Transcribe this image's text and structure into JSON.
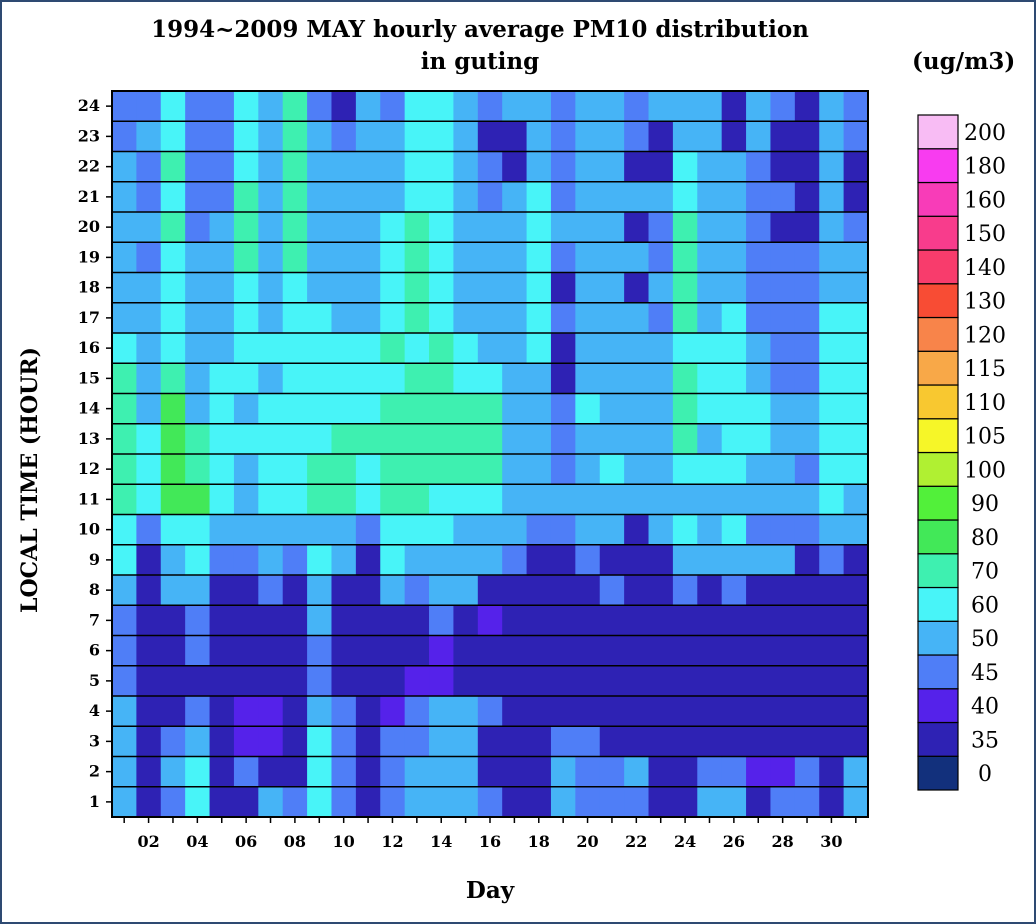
{
  "chart_data": {
    "type": "heatmap",
    "title": "1994~2009 MAY hourly average PM10 distribution",
    "subtitle": "in guting",
    "xlabel": "Day",
    "ylabel": "LOCAL TIME (HOUR)",
    "colorbar_unit": "(ug/m3)",
    "x": [
      1,
      2,
      3,
      4,
      5,
      6,
      7,
      8,
      9,
      10,
      11,
      12,
      13,
      14,
      15,
      16,
      17,
      18,
      19,
      20,
      21,
      22,
      23,
      24,
      25,
      26,
      27,
      28,
      29,
      30,
      31
    ],
    "x_tick_labels": [
      "02",
      "04",
      "06",
      "08",
      "10",
      "12",
      "14",
      "16",
      "18",
      "20",
      "22",
      "24",
      "26",
      "28",
      "30"
    ],
    "y": [
      1,
      2,
      3,
      4,
      5,
      6,
      7,
      8,
      9,
      10,
      11,
      12,
      13,
      14,
      15,
      16,
      17,
      18,
      19,
      20,
      21,
      22,
      23,
      24
    ],
    "y_tick_labels": [
      "1",
      "2",
      "3",
      "4",
      "5",
      "6",
      "7",
      "8",
      "9",
      "10",
      "11",
      "12",
      "13",
      "14",
      "15",
      "16",
      "17",
      "18",
      "19",
      "20",
      "21",
      "22",
      "23",
      "24"
    ],
    "colorbar": {
      "boundaries": [
        0,
        35,
        40,
        45,
        50,
        60,
        70,
        80,
        90,
        100,
        105,
        110,
        115,
        120,
        130,
        140,
        150,
        160,
        180,
        200
      ],
      "tick_labels": [
        "0",
        "35",
        "40",
        "45",
        "50",
        "60",
        "70",
        "80",
        "90",
        "100",
        "105",
        "110",
        "115",
        "120",
        "130",
        "140",
        "150",
        "160",
        "180",
        "200"
      ],
      "colors": [
        "#12307c",
        "#2e22b4",
        "#5522ea",
        "#4f7ef7",
        "#46b4f6",
        "#48f4f8",
        "#3ef0b0",
        "#42e858",
        "#52f03a",
        "#b0f032",
        "#f6f628",
        "#f8c830",
        "#f8a848",
        "#f8844a",
        "#f84c34",
        "#f83c6c",
        "#f83c8c",
        "#f83cb8",
        "#f83cf0",
        "#f8bcf4"
      ]
    },
    "values": [
      [
        55,
        38,
        45,
        60,
        38,
        38,
        55,
        48,
        65,
        45,
        38,
        48,
        55,
        55,
        55,
        48,
        38,
        38,
        55,
        48,
        48,
        48,
        35,
        38,
        55,
        55,
        38,
        45,
        45,
        35,
        55
      ],
      [
        55,
        38,
        55,
        60,
        38,
        45,
        38,
        38,
        60,
        45,
        38,
        45,
        55,
        55,
        55,
        38,
        38,
        38,
        55,
        48,
        48,
        55,
        35,
        38,
        48,
        48,
        42,
        42,
        45,
        35,
        55
      ],
      [
        55,
        38,
        48,
        55,
        38,
        42,
        42,
        38,
        60,
        48,
        38,
        45,
        48,
        55,
        55,
        38,
        38,
        38,
        48,
        48,
        38,
        38,
        38,
        38,
        38,
        38,
        38,
        38,
        38,
        35,
        38
      ],
      [
        55,
        35,
        38,
        45,
        38,
        42,
        42,
        38,
        55,
        48,
        38,
        42,
        48,
        55,
        55,
        48,
        35,
        38,
        38,
        38,
        38,
        38,
        35,
        38,
        38,
        38,
        38,
        38,
        38,
        35,
        38
      ],
      [
        48,
        35,
        38,
        38,
        38,
        38,
        38,
        38,
        45,
        38,
        38,
        38,
        42,
        42,
        38,
        38,
        35,
        35,
        38,
        38,
        38,
        38,
        35,
        35,
        35,
        35,
        35,
        35,
        35,
        35,
        35
      ],
      [
        48,
        38,
        38,
        48,
        38,
        35,
        38,
        35,
        48,
        38,
        35,
        38,
        38,
        42,
        38,
        38,
        38,
        35,
        38,
        38,
        38,
        38,
        35,
        35,
        35,
        35,
        35,
        35,
        35,
        35,
        35
      ],
      [
        48,
        38,
        38,
        48,
        38,
        35,
        38,
        35,
        55,
        38,
        38,
        38,
        38,
        48,
        38,
        42,
        38,
        35,
        38,
        38,
        38,
        38,
        35,
        38,
        38,
        38,
        38,
        38,
        35,
        35,
        35
      ],
      [
        55,
        38,
        55,
        55,
        38,
        38,
        48,
        38,
        55,
        38,
        38,
        55,
        48,
        55,
        55,
        38,
        38,
        38,
        38,
        38,
        48,
        38,
        35,
        48,
        38,
        48,
        38,
        38,
        35,
        38,
        38
      ],
      [
        60,
        38,
        55,
        60,
        48,
        48,
        55,
        48,
        60,
        55,
        38,
        60,
        55,
        55,
        55,
        55,
        48,
        38,
        38,
        48,
        38,
        38,
        38,
        55,
        55,
        55,
        55,
        55,
        38,
        48,
        38
      ],
      [
        60,
        48,
        60,
        60,
        55,
        55,
        55,
        55,
        55,
        55,
        48,
        60,
        60,
        60,
        55,
        55,
        55,
        48,
        48,
        55,
        55,
        38,
        55,
        60,
        55,
        60,
        48,
        48,
        48,
        55,
        55
      ],
      [
        70,
        60,
        80,
        80,
        60,
        55,
        60,
        60,
        70,
        70,
        60,
        70,
        70,
        60,
        60,
        60,
        55,
        55,
        55,
        55,
        55,
        55,
        55,
        55,
        55,
        55,
        55,
        55,
        55,
        60,
        55
      ],
      [
        75,
        60,
        85,
        70,
        60,
        55,
        60,
        60,
        70,
        70,
        60,
        70,
        70,
        70,
        70,
        70,
        55,
        55,
        48,
        55,
        60,
        55,
        55,
        60,
        60,
        60,
        55,
        55,
        48,
        60,
        60
      ],
      [
        75,
        60,
        85,
        70,
        60,
        60,
        60,
        60,
        60,
        70,
        70,
        70,
        70,
        70,
        70,
        70,
        55,
        55,
        48,
        55,
        55,
        55,
        55,
        70,
        55,
        60,
        60,
        55,
        55,
        60,
        60
      ],
      [
        75,
        55,
        80,
        55,
        60,
        55,
        60,
        60,
        60,
        60,
        60,
        70,
        70,
        70,
        70,
        70,
        55,
        55,
        48,
        60,
        55,
        55,
        55,
        70,
        60,
        60,
        60,
        55,
        55,
        60,
        60
      ],
      [
        70,
        55,
        70,
        55,
        60,
        60,
        55,
        60,
        60,
        60,
        60,
        60,
        70,
        70,
        60,
        60,
        55,
        55,
        38,
        55,
        55,
        55,
        55,
        70,
        60,
        60,
        55,
        48,
        48,
        60,
        60
      ],
      [
        60,
        55,
        60,
        55,
        55,
        60,
        60,
        60,
        60,
        60,
        60,
        70,
        60,
        70,
        60,
        55,
        55,
        60,
        38,
        55,
        55,
        55,
        55,
        60,
        60,
        60,
        55,
        48,
        48,
        60,
        60
      ],
      [
        55,
        55,
        60,
        55,
        55,
        60,
        55,
        60,
        60,
        55,
        55,
        60,
        70,
        60,
        55,
        55,
        55,
        60,
        48,
        55,
        55,
        55,
        48,
        70,
        55,
        60,
        48,
        48,
        48,
        60,
        60
      ],
      [
        55,
        55,
        60,
        55,
        55,
        60,
        55,
        60,
        55,
        55,
        55,
        60,
        70,
        60,
        55,
        55,
        55,
        60,
        38,
        55,
        55,
        38,
        55,
        70,
        55,
        55,
        48,
        48,
        48,
        55,
        55
      ],
      [
        55,
        48,
        60,
        55,
        55,
        70,
        55,
        70,
        55,
        55,
        55,
        60,
        70,
        60,
        55,
        55,
        55,
        60,
        48,
        55,
        55,
        55,
        48,
        70,
        55,
        55,
        48,
        48,
        48,
        55,
        55
      ],
      [
        55,
        55,
        70,
        48,
        55,
        70,
        55,
        70,
        55,
        55,
        55,
        60,
        70,
        60,
        55,
        55,
        55,
        60,
        55,
        55,
        55,
        38,
        48,
        70,
        55,
        55,
        48,
        38,
        38,
        55,
        48
      ],
      [
        55,
        48,
        60,
        48,
        48,
        70,
        55,
        70,
        55,
        55,
        55,
        55,
        60,
        60,
        55,
        48,
        55,
        60,
        48,
        55,
        55,
        55,
        55,
        60,
        55,
        55,
        48,
        48,
        38,
        55,
        38
      ],
      [
        55,
        48,
        70,
        48,
        48,
        60,
        55,
        70,
        55,
        55,
        55,
        55,
        60,
        60,
        55,
        48,
        38,
        55,
        48,
        55,
        55,
        38,
        38,
        60,
        55,
        55,
        48,
        38,
        35,
        55,
        38
      ],
      [
        48,
        55,
        60,
        48,
        48,
        60,
        55,
        70,
        55,
        48,
        55,
        55,
        60,
        60,
        55,
        38,
        38,
        55,
        48,
        55,
        55,
        48,
        38,
        55,
        55,
        38,
        55,
        38,
        35,
        55,
        48
      ],
      [
        48,
        48,
        60,
        48,
        48,
        60,
        55,
        70,
        48,
        38,
        55,
        48,
        60,
        60,
        55,
        48,
        55,
        55,
        48,
        55,
        55,
        48,
        55,
        55,
        55,
        38,
        55,
        48,
        35,
        55,
        48
      ]
    ]
  }
}
